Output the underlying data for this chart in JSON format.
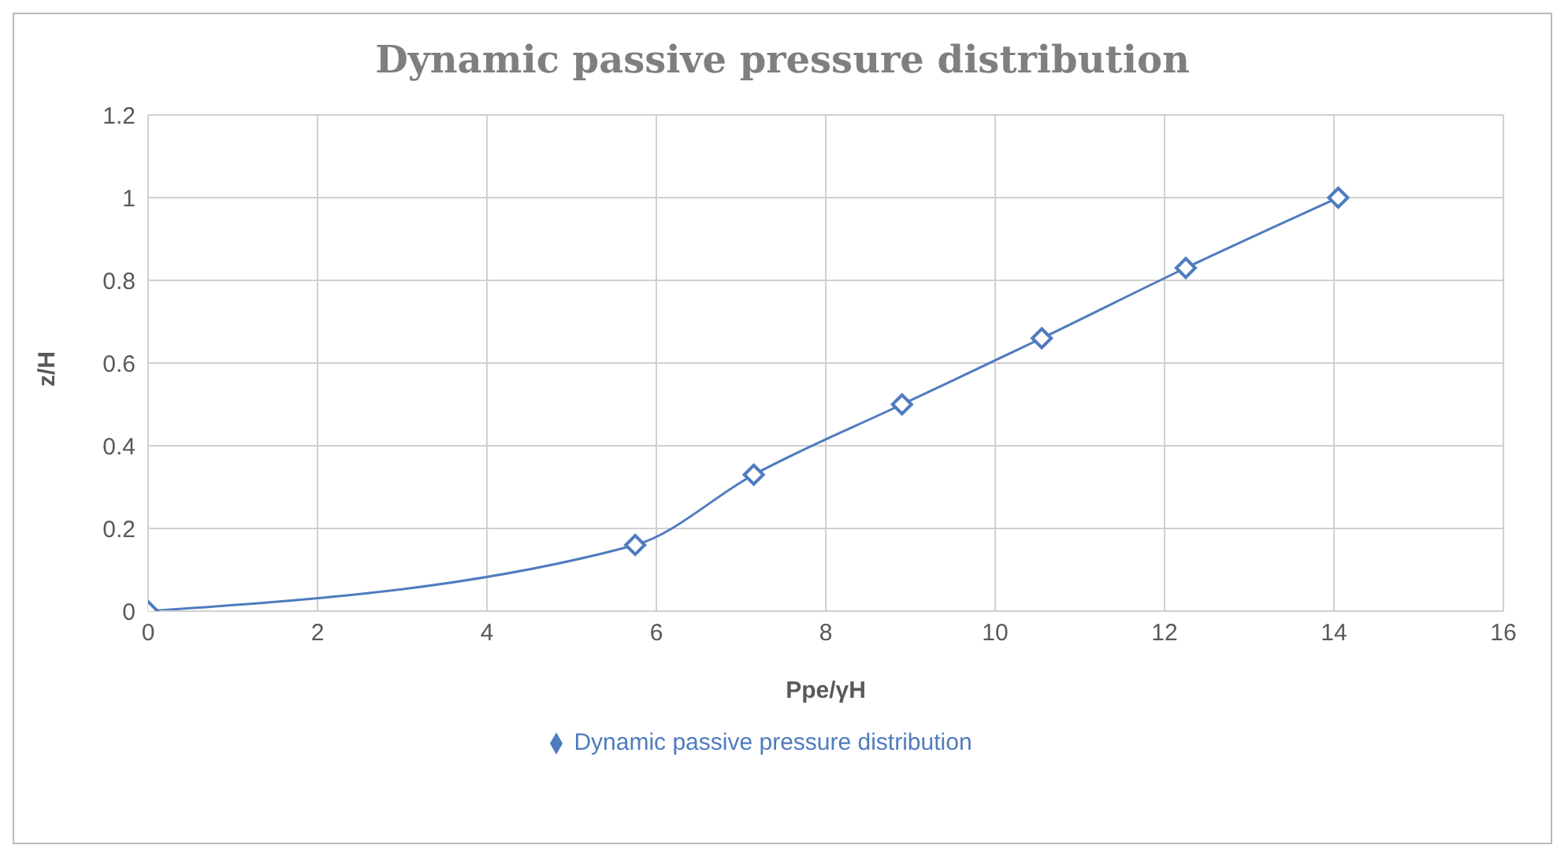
{
  "chart_data": {
    "type": "line",
    "title": "Dynamic passive pressure distribution",
    "xlabel": "Ppe/γH",
    "ylabel": "z/H",
    "x": [
      0,
      5.75,
      7.15,
      8.9,
      10.55,
      12.25,
      14.05
    ],
    "series": [
      {
        "name": "Dynamic passive pressure distribution",
        "color": "#4f7bbf",
        "values": [
          0,
          0.16,
          0.33,
          0.5,
          0.66,
          0.83,
          1
        ]
      }
    ],
    "xlim": [
      0,
      16
    ],
    "xticks": [
      0,
      2,
      4,
      6,
      8,
      10,
      12,
      14,
      16
    ],
    "ylim": [
      0,
      1.2
    ],
    "yticks": [
      0,
      0.2,
      0.4,
      0.6,
      0.8,
      1,
      1.2
    ],
    "grid": true,
    "legend": "bottom",
    "marker": "diamond",
    "line_style": "solid"
  }
}
